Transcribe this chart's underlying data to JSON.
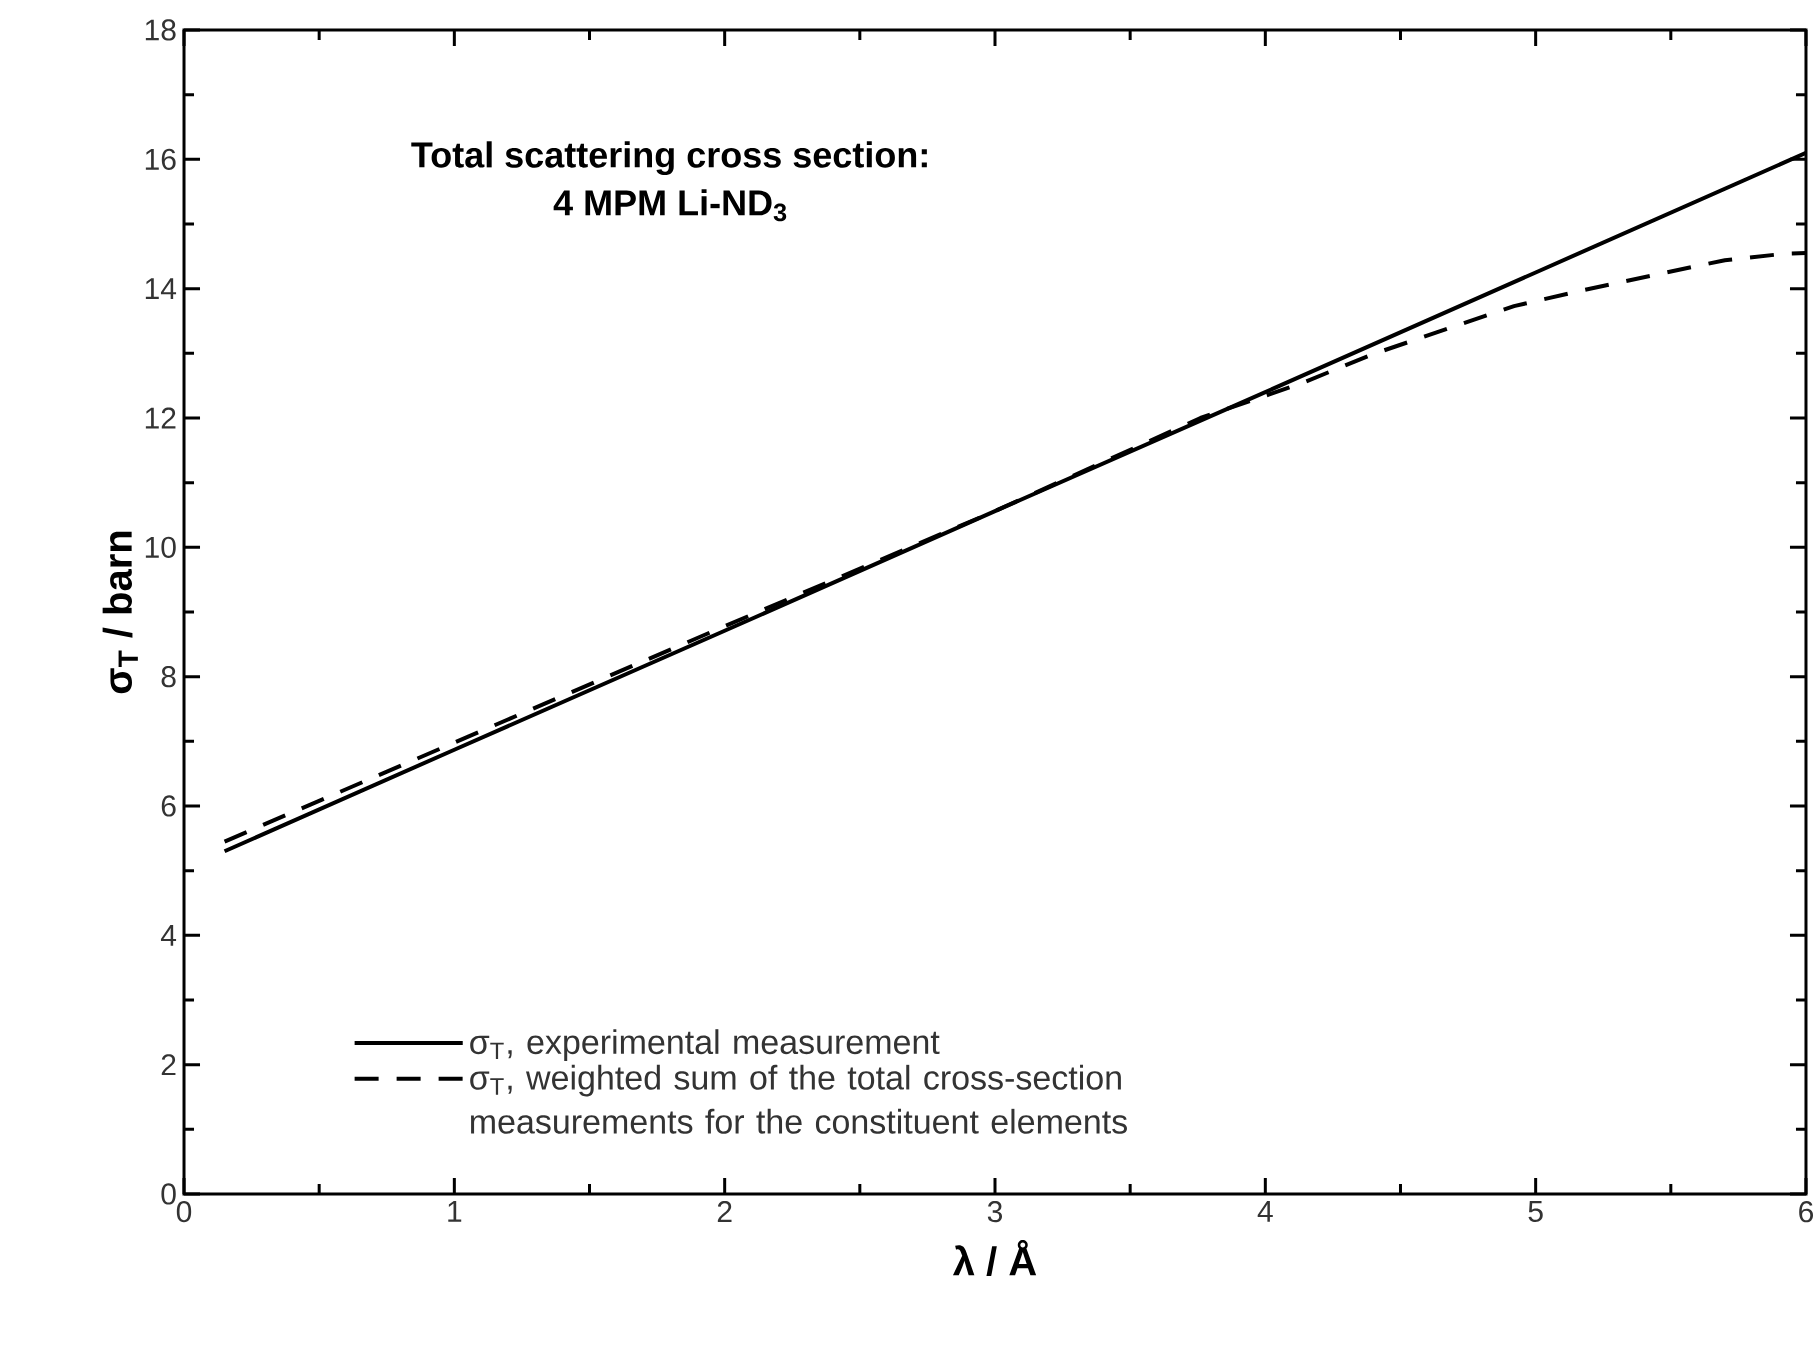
{
  "chart_data": {
    "type": "line",
    "title": "Total scattering cross section:",
    "subtitle": "4 MPM Li-ND$_{3}$",
    "xlabel": "λ / Å",
    "ylabel": "σ$_{T}$ / barn",
    "xlim": [
      0,
      6
    ],
    "ylim": [
      0,
      18
    ],
    "xticks": [
      0,
      1,
      2,
      3,
      4,
      5,
      6
    ],
    "yticks": [
      0,
      2,
      4,
      6,
      8,
      10,
      12,
      14,
      16,
      18
    ],
    "legend": "bottom left",
    "grid": false,
    "series": [
      {
        "name": "σ$_{T}$, experimental measurement",
        "color": "#000000",
        "line_style": "solid",
        "x": [
          0.15,
          1,
          2,
          3,
          4,
          5,
          6
        ],
        "values": [
          5.3,
          6.87,
          8.71,
          10.56,
          12.4,
          14.25,
          16.1
        ]
      },
      {
        "name": "σ$_{T}$, weighted sum of the total cross-section measurements for the constituent elements",
        "color": "#000000",
        "line_style": "dashed",
        "x": [
          0.15,
          1,
          2,
          3,
          3.76,
          4.13,
          4.4,
          4.66,
          4.92,
          5.18,
          5.46,
          5.7,
          5.92,
          6
        ],
        "values": [
          5.45,
          6.98,
          8.78,
          10.56,
          12.0,
          12.53,
          12.99,
          13.36,
          13.73,
          13.98,
          14.23,
          14.44,
          14.54,
          14.55
        ]
      }
    ]
  }
}
